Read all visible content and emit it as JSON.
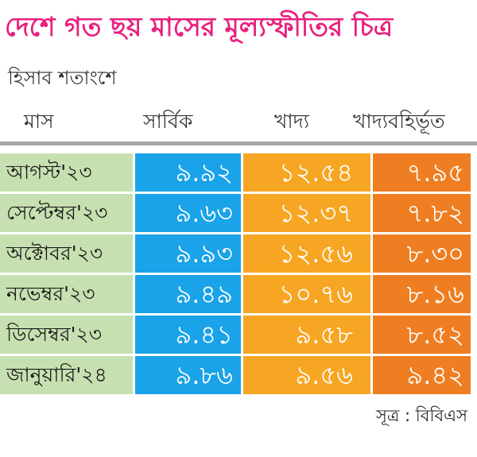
{
  "title": "দেশে গত ছয় মাসের মূল্যস্ফীতির চিত্র",
  "subtitle": "হিসাব শতাংশে",
  "source": "সূত্র : বিবিএস",
  "colors": {
    "title": "#e8217f",
    "month_cell": "#c7e0b1",
    "overall": "#1aa3e8",
    "food": "#f7a623",
    "non_food": "#ef7e22"
  },
  "chart_data": {
    "type": "table",
    "title": "দেশে গত ছয় মাসের মূল্যস্ফীতির চিত্র",
    "subtitle": "হিসাব শতাংশে",
    "columns": [
      "মাস",
      "সার্বিক",
      "খাদ্য",
      "খাদ্যবহির্ভূত"
    ],
    "rows": [
      [
        "আগস্ট'২৩",
        "৯.৯২",
        "১২.৫৪",
        "৭.৯৫"
      ],
      [
        "সেপ্টেম্বর'২৩",
        "৯.৬৩",
        "১২.৩৭",
        "৭.৮২"
      ],
      [
        "অক্টোবর'২৩",
        "৯.৯৩",
        "১২.৫৬",
        "৮.৩০"
      ],
      [
        "নভেম্বর'২৩",
        "৯.৪৯",
        "১০.৭৬",
        "৮.১৬"
      ],
      [
        "ডিসেম্বর'২৩",
        "৯.৪১",
        "৯.৫৮",
        "৮.৫২"
      ],
      [
        "জানুয়ারি'২৪",
        "৯.৮৬",
        "৯.৫৬",
        "৯.৪২"
      ]
    ],
    "series": [
      {
        "name": "সার্বিক",
        "values": [
          9.92,
          9.63,
          9.93,
          9.49,
          9.41,
          9.86
        ]
      },
      {
        "name": "খাদ্য",
        "values": [
          12.54,
          12.37,
          12.56,
          10.76,
          9.58,
          9.56
        ]
      },
      {
        "name": "খাদ্যবহির্ভূত",
        "values": [
          7.95,
          7.82,
          8.3,
          8.16,
          8.52,
          9.42
        ]
      }
    ],
    "source": "সূত্র : বিবিএস"
  }
}
